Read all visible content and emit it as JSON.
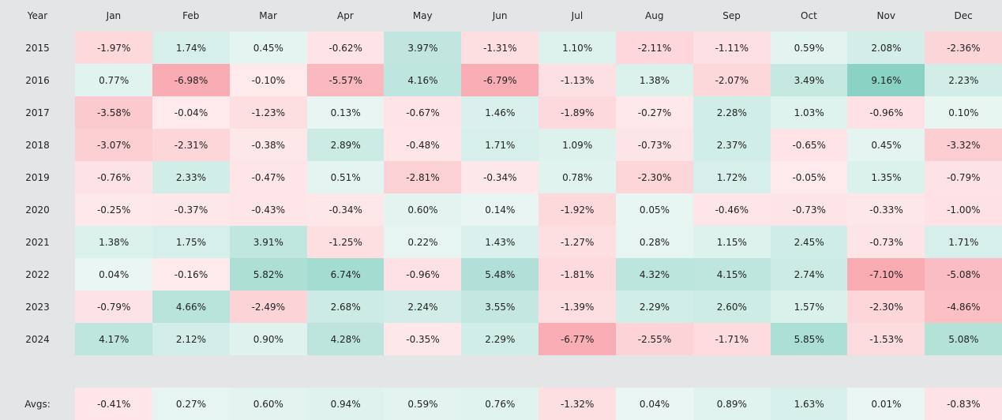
{
  "chart_data": {
    "type": "heatmap",
    "corner_label": "Year",
    "columns": [
      "Jan",
      "Feb",
      "Mar",
      "Apr",
      "May",
      "Jun",
      "Jul",
      "Aug",
      "Sep",
      "Oct",
      "Nov",
      "Dec"
    ],
    "rows": [
      {
        "year": "2015",
        "values": [
          -1.97,
          1.74,
          0.45,
          -0.62,
          3.97,
          -1.31,
          1.1,
          -2.11,
          -1.11,
          0.59,
          2.08,
          -2.36
        ]
      },
      {
        "year": "2016",
        "values": [
          0.77,
          -6.98,
          -0.1,
          -5.57,
          4.16,
          -6.79,
          -1.13,
          1.38,
          -2.07,
          3.49,
          9.16,
          2.23
        ]
      },
      {
        "year": "2017",
        "values": [
          -3.58,
          -0.04,
          -1.23,
          0.13,
          -0.67,
          1.46,
          -1.89,
          -0.27,
          2.28,
          1.03,
          -0.96,
          0.1
        ]
      },
      {
        "year": "2018",
        "values": [
          -3.07,
          -2.31,
          -0.38,
          2.89,
          -0.48,
          1.71,
          1.09,
          -0.73,
          2.37,
          -0.65,
          0.45,
          -3.32
        ]
      },
      {
        "year": "2019",
        "values": [
          -0.76,
          2.33,
          -0.47,
          0.51,
          -2.81,
          -0.34,
          0.78,
          -2.3,
          1.72,
          -0.05,
          1.35,
          -0.79
        ]
      },
      {
        "year": "2020",
        "values": [
          -0.25,
          -0.37,
          -0.43,
          -0.34,
          0.6,
          0.14,
          -1.92,
          0.05,
          -0.46,
          -0.73,
          -0.33,
          -1.0
        ]
      },
      {
        "year": "2021",
        "values": [
          1.38,
          1.75,
          3.91,
          -1.25,
          0.22,
          1.43,
          -1.27,
          0.28,
          1.15,
          2.45,
          -0.73,
          1.71
        ]
      },
      {
        "year": "2022",
        "values": [
          0.04,
          -0.16,
          5.82,
          6.74,
          -0.96,
          5.48,
          -1.81,
          4.32,
          4.15,
          2.74,
          -7.1,
          -5.08
        ]
      },
      {
        "year": "2023",
        "values": [
          -0.79,
          4.66,
          -2.49,
          2.68,
          2.24,
          3.55,
          -1.39,
          2.29,
          2.6,
          1.57,
          -2.3,
          -4.86
        ]
      },
      {
        "year": "2024",
        "values": [
          4.17,
          2.12,
          0.9,
          4.28,
          -0.35,
          2.29,
          -6.77,
          -2.55,
          -1.71,
          5.85,
          -1.53,
          5.08
        ]
      }
    ],
    "averages": {
      "label": "Avgs:",
      "values": [
        -0.41,
        0.27,
        0.6,
        0.94,
        0.59,
        0.76,
        -1.32,
        0.04,
        0.89,
        1.63,
        0.01,
        -0.83
      ]
    },
    "unit": "%",
    "colors": {
      "positive_low": "#e9f6f3",
      "positive_high": "#8ad2c4",
      "negative_low": "#feeaec",
      "negative_high": "#f9abb2",
      "background": "#e4e5e7"
    }
  }
}
